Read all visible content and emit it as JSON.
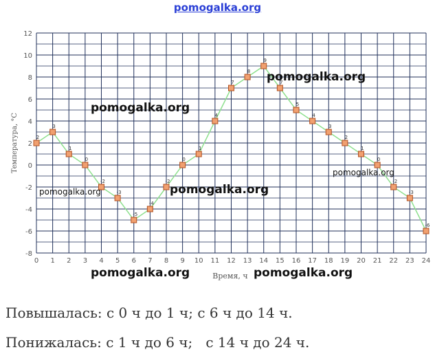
{
  "header": {
    "site": "pomogalka.org"
  },
  "chart_data": {
    "type": "line",
    "title": "",
    "xlabel": "Время, ч",
    "ylabel": "Температура, °C",
    "x": [
      0,
      1,
      2,
      3,
      4,
      5,
      6,
      7,
      8,
      9,
      10,
      11,
      12,
      13,
      14,
      15,
      16,
      17,
      18,
      19,
      20,
      21,
      22,
      23,
      24
    ],
    "series": [
      {
        "values": [
          2,
          3,
          1,
          0,
          -2,
          -3,
          -5,
          -4,
          -2,
          0,
          1,
          4,
          7,
          8,
          9,
          7,
          5,
          4,
          3,
          2,
          1,
          0,
          -2,
          -3,
          -6
        ]
      }
    ],
    "point_labels": [
      "2",
      "3",
      "1",
      "0",
      "-2",
      "-3",
      "-5",
      "-4",
      "-2",
      "0",
      "1",
      "4",
      "7",
      "8",
      "9",
      "7",
      "5",
      "4",
      "3",
      "2",
      "1",
      "0",
      "-2",
      "-3",
      "-6"
    ],
    "xlim": [
      0,
      24
    ],
    "ylim": [
      -8,
      12
    ],
    "x_ticks": [
      "0",
      "1",
      "2",
      "3",
      "4",
      "5",
      "6",
      "7",
      "8",
      "9",
      "10",
      "11",
      "12",
      "13",
      "14",
      "15",
      "16",
      "17",
      "18",
      "19",
      "20",
      "21",
      "22",
      "23",
      "24"
    ],
    "y_ticks": [
      "-8",
      "-6",
      "-4",
      "-2",
      "0",
      "2",
      "4",
      "6",
      "8",
      "10",
      "12"
    ],
    "grid": true,
    "colors": {
      "grid": "#1f2f5a",
      "line": "#8ee08e",
      "marker_fill": "#f0a070",
      "marker_stroke": "#b05020",
      "axis_text": "#555555"
    }
  },
  "watermarks": [
    "pomogalka.org",
    "pomogalka.org",
    "pomogalka.org",
    "pomogalka.org",
    "pomogalka.org",
    "pomogalka.org",
    "pomogalka.org"
  ],
  "answers": {
    "rose": "Повышалась: с 0 ч до 1 ч; с 6 ч до 14 ч.",
    "fell": "Понижалась: с 1 ч до 6 ч;   с 14 ч до 24 ч."
  }
}
